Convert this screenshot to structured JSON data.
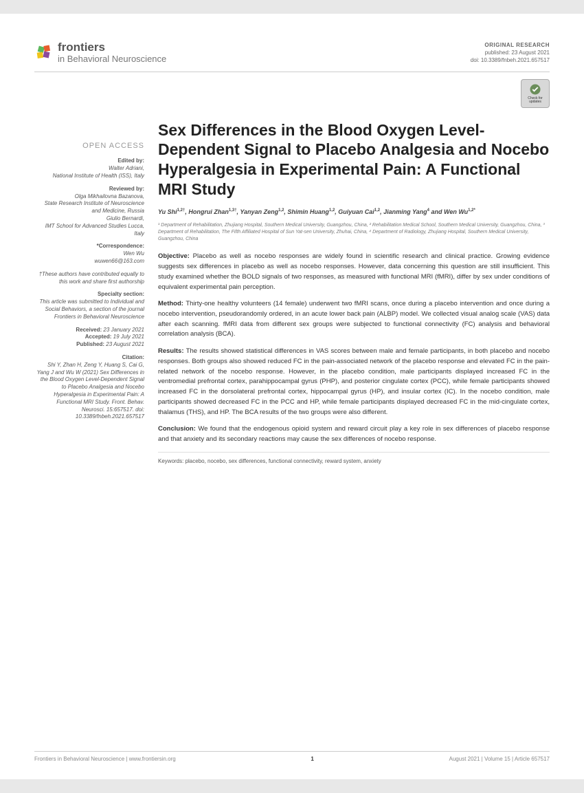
{
  "header": {
    "logo_main": "frontiers",
    "logo_sub": "in Behavioral Neuroscience",
    "pub_type": "ORIGINAL RESEARCH",
    "pub_date": "published: 23 August 2021",
    "doi": "doi: 10.3389/fnbeh.2021.657517",
    "check_label": "Check for updates"
  },
  "title": "Sex Differences in the Blood Oxygen Level-Dependent Signal to Placebo Analgesia and Nocebo Hyperalgesia in Experimental Pain: A Functional MRI Study",
  "authors_html": "Yu Shi<sup>1,2†</sup>, Hongrui Zhan<sup>1,3†</sup>, Yanyan Zeng<sup>1,2</sup>, Shimin Huang<sup>1,2</sup>, Guiyuan Cai<sup>1,2</sup>, Jianming Yang<sup>4</sup> and Wen Wu<sup>1,2*</sup>",
  "affiliations": "¹ Department of Rehabilitation, Zhujiang Hospital, Southern Medical University, Guangzhou, China, ² Rehabilitation Medical School, Southern Medical University, Guangzhou, China, ³ Department of Rehabilitation, The Fifth Affiliated Hospital of Sun Yat-sen University, Zhuhai, China, ⁴ Department of Radiology, Zhujiang Hospital, Southern Medical University, Guangzhou, China",
  "sidebar": {
    "open_access": "OPEN ACCESS",
    "edited_label": "Edited by:",
    "edited_by": "Walter Adriani,",
    "edited_aff": "National Institute of Health (ISS), Italy",
    "reviewed_label": "Reviewed by:",
    "rev1": "Olga Mikhailovna Bazanova,",
    "rev1_aff": "State Research Institute of Neuroscience and Medicine, Russia",
    "rev2": "Giulio Bernardi,",
    "rev2_aff": "IMT School for Advanced Studies Lucca, Italy",
    "corr_label": "*Correspondence:",
    "corr_name": "Wen Wu",
    "corr_email": "wuwen66@163.com",
    "equal_note": "†These authors have contributed equally to this work and share first authorship",
    "specialty_label": "Specialty section:",
    "specialty": "This article was submitted to Individual and Social Behaviors, a section of the journal Frontiers in Behavioral Neuroscience",
    "received_label": "Received:",
    "received": " 23 January 2021",
    "accepted_label": "Accepted:",
    "accepted": " 19 July 2021",
    "published_label": "Published:",
    "published": " 23 August 2021",
    "citation_label": "Citation:",
    "citation": "Shi Y, Zhan H, Zeng Y, Huang S, Cai G, Yang J and Wu W (2021) Sex Differences in the Blood Oxygen Level-Dependent Signal to Placebo Analgesia and Nocebo Hyperalgesia in Experimental Pain: A Functional MRI Study. Front. Behav. Neurosci. 15:657517. doi: 10.3389/fnbeh.2021.657517"
  },
  "abstract": {
    "objective": "Placebo as well as nocebo responses are widely found in scientific research and clinical practice. Growing evidence suggests sex differences in placebo as well as nocebo responses. However, data concerning this question are still insufficient. This study examined whether the BOLD signals of two responses, as measured with functional MRI (fMRI), differ by sex under conditions of equivalent experimental pain perception.",
    "method": "Thirty-one healthy volunteers (14 female) underwent two fMRI scans, once during a placebo intervention and once during a nocebo intervention, pseudorandomly ordered, in an acute lower back pain (ALBP) model. We collected visual analog scale (VAS) data after each scanning. fMRI data from different sex groups were subjected to functional connectivity (FC) analysis and behavioral correlation analysis (BCA).",
    "results": "The results showed statistical differences in VAS scores between male and female participants, in both placebo and nocebo responses. Both groups also showed reduced FC in the pain-associated network of the placebo response and elevated FC in the pain-related network of the nocebo response. However, in the placebo condition, male participants displayed increased FC in the ventromedial prefrontal cortex, parahippocampal gyrus (PHP), and posterior cingulate cortex (PCC), while female participants showed increased FC in the dorsolateral prefrontal cortex, hippocampal gyrus (HP), and insular cortex (IC). In the nocebo condition, male participants showed decreased FC in the PCC and HP, while female participants displayed decreased FC in the mid-cingulate cortex, thalamus (THS), and HP. The BCA results of the two groups were also different.",
    "conclusion": "We found that the endogenous opioid system and reward circuit play a key role in sex differences of placebo response and that anxiety and its secondary reactions may cause the sex differences of nocebo response."
  },
  "keywords": "Keywords: placebo, nocebo, sex differences, functional connectivity, reward system, anxiety",
  "footer": {
    "left": "Frontiers in Behavioral Neuroscience | www.frontiersin.org",
    "page": "1",
    "right": "August 2021 | Volume 15 | Article 657517"
  },
  "colors": {
    "logo1": "#e85d2c",
    "logo2": "#5cb85c",
    "logo3": "#f0c419",
    "logo4": "#8b4a9c",
    "check_bg": "#6b8e5a"
  }
}
